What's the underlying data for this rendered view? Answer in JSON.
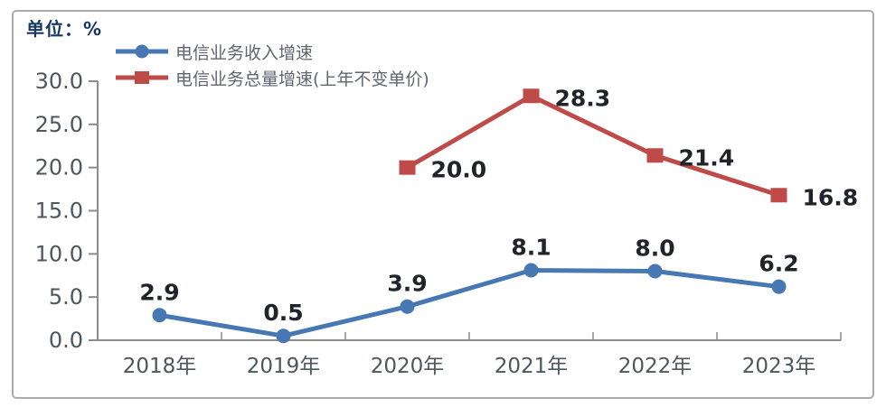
{
  "unit_label": "单位：%",
  "colors": {
    "revenue_series": "#4878B4",
    "volume_series": "#BF4B48",
    "axis_line": "#8c8c8c",
    "axis_text": "#4e565e",
    "data_label_text": "#20242a",
    "unit_text": "#17375e",
    "legend_text": "#5e6670",
    "frame_border": "#ababab"
  },
  "legend": [
    {
      "label": "电信业务收入增速",
      "marker": "circle"
    },
    {
      "label": "电信业务总量增速(上年不变单价)",
      "marker": "square"
    }
  ],
  "chart_data": {
    "type": "line",
    "categories": [
      "2018年",
      "2019年",
      "2020年",
      "2021年",
      "2022年",
      "2023年"
    ],
    "series": [
      {
        "name": "电信业务收入增速",
        "values": [
          2.9,
          0.5,
          3.9,
          8.1,
          8.0,
          6.2
        ],
        "labels": [
          "2.9",
          "0.5",
          "3.9",
          "8.1",
          "8.0",
          "6.2"
        ],
        "marker": "circle",
        "label_position": "above"
      },
      {
        "name": "电信业务总量增速(上年不变单价)",
        "values": [
          null,
          null,
          20.0,
          28.3,
          21.4,
          16.8
        ],
        "labels": [
          null,
          null,
          "20.0",
          "28.3",
          "21.4",
          "16.8"
        ],
        "marker": "square",
        "label_position": "right"
      }
    ],
    "title": "",
    "xlabel": "",
    "ylabel": "单位：%",
    "ylim": [
      0,
      30
    ],
    "y_ticks": [
      "30.0",
      "25.0",
      "20.0",
      "15.0",
      "10.0",
      "5.0",
      "0.0"
    ],
    "grid": false,
    "legend_position": "top-left"
  }
}
